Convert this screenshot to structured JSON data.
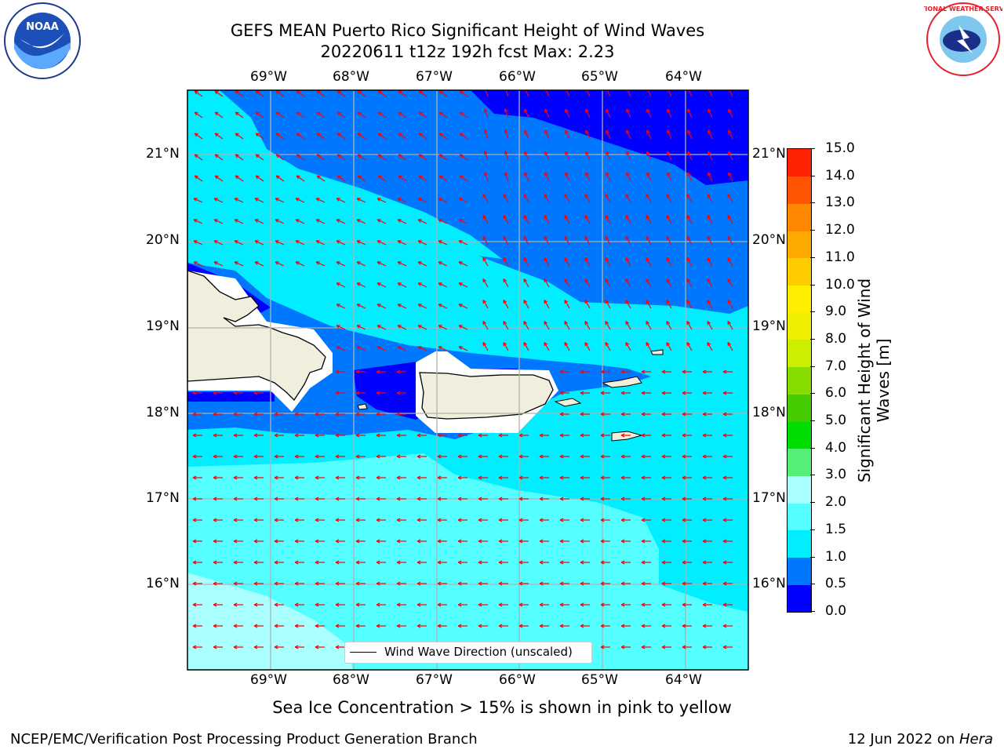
{
  "title_line1": "GEFS MEAN Puerto Rico Significant Height of Wind Waves",
  "title_line2": "20220611 t12z 192h fcst   Max: 2.23",
  "lon_labels": [
    "69°W",
    "68°W",
    "67°W",
    "66°W",
    "65°W",
    "64°W"
  ],
  "lat_labels": [
    "21°N",
    "20°N",
    "19°N",
    "18°N",
    "17°N",
    "16°N"
  ],
  "legend_text": "Wind Wave Direction (unscaled)",
  "colorbar": {
    "label": "Significant Height of Wind Waves [m]",
    "ticks": [
      "0.0",
      "0.5",
      "1.0",
      "1.5",
      "2.0",
      "3.0",
      "4.0",
      "5.0",
      "6.0",
      "7.0",
      "8.0",
      "9.0",
      "10.0",
      "11.0",
      "12.0",
      "13.0",
      "14.0",
      "15.0"
    ],
    "colors": [
      "#0000ff",
      "#0077ff",
      "#00eeff",
      "#55ffff",
      "#aaffff",
      "#55ee77",
      "#00dd00",
      "#44cc00",
      "#88dd00",
      "#ccee00",
      "#eeee00",
      "#ffee00",
      "#ffcc00",
      "#ffaa00",
      "#ff8800",
      "#ff5500",
      "#ff2200"
    ]
  },
  "sea_ice_note": "Sea Ice Concentration > 15% is shown in pink to yellow",
  "footer_left": "NCEP/EMC/Verification Post Processing Product Generation Branch",
  "footer_right_date": "12 Jun 2022 on ",
  "footer_right_host": "Hera",
  "logo_left_text": "NOAA",
  "logo_right_text": "NATIONAL WEATHER SERVICE",
  "colors": {
    "arrow": "#ff0000",
    "land": "#f0eedc",
    "grid": "#b0b0b0"
  }
}
